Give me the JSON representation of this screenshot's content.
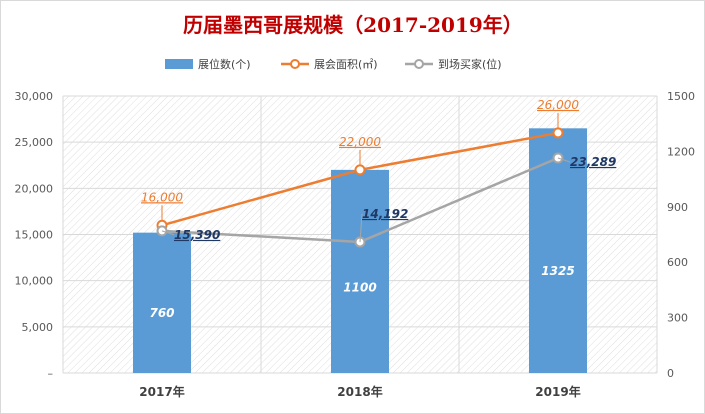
{
  "chart_data": {
    "type": "bar",
    "title": "历届墨西哥展规模（2017-2019年）",
    "categories": [
      "2017年",
      "2018年",
      "2019年"
    ],
    "series": [
      {
        "name": "展位数(个)",
        "kind": "bar",
        "axis": "right",
        "values": [
          760,
          1100,
          1325
        ],
        "value_labels": [
          "760",
          "1100",
          "1325"
        ],
        "color": "#5b9bd5"
      },
      {
        "name": "展会面积(㎡)",
        "kind": "line",
        "axis": "left",
        "values": [
          16000,
          22000,
          26000
        ],
        "value_labels": [
          "16,000",
          "22,000",
          "26,000"
        ],
        "color": "#ed7d31"
      },
      {
        "name": "到场买家(位)",
        "kind": "line",
        "axis": "left",
        "values": [
          15390,
          14192,
          23289
        ],
        "value_labels": [
          "15,390",
          "14,192",
          "23,289"
        ],
        "color": "#a5a5a5"
      }
    ],
    "y_left": {
      "ylim": [
        0,
        30000
      ],
      "ticks": [
        "–",
        "5,000",
        "10,000",
        "15,000",
        "20,000",
        "25,000",
        "30,000"
      ]
    },
    "y_right": {
      "ylim": [
        0,
        1500
      ],
      "ticks": [
        "0",
        "300",
        "600",
        "900",
        "1200",
        "1500"
      ]
    },
    "grid": true,
    "legend_position": "top"
  },
  "colors": {
    "title": "#c00000",
    "plot_hatch": "#d9d9d9",
    "gridline": "#d9d9d9"
  }
}
